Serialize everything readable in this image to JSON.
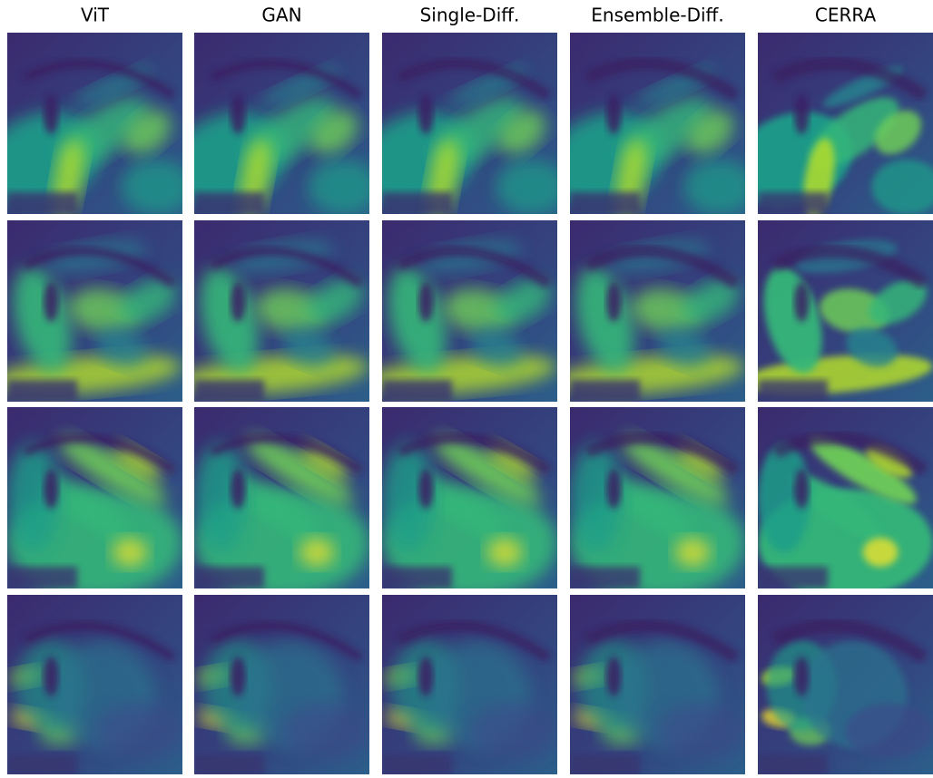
{
  "columns": [
    "ViT",
    "GAN",
    "Single-Diff.",
    "Ensemble-Diff.",
    "CERRA"
  ]
}
